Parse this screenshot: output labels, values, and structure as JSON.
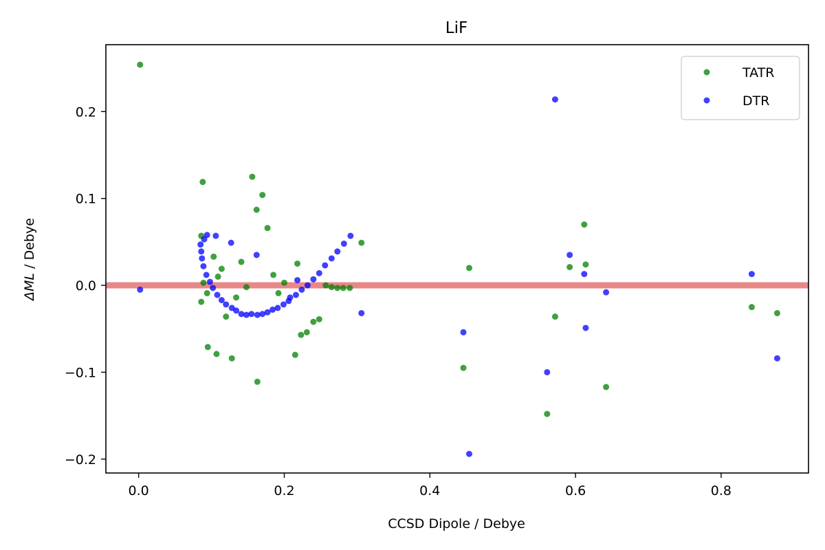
{
  "chart_data": {
    "type": "scatter",
    "title": "LiF",
    "xlabel": "CCSD Dipole / Debye",
    "ylabel_symbol": "ΔML",
    "ylabel_unit": " / Debye",
    "xlim": [
      -0.045,
      0.92
    ],
    "ylim": [
      -0.216,
      0.277
    ],
    "x_ticks": [
      0.0,
      0.2,
      0.4,
      0.6,
      0.8
    ],
    "x_tick_labels": [
      "0.0",
      "0.2",
      "0.4",
      "0.6",
      "0.8"
    ],
    "y_ticks": [
      -0.2,
      -0.1,
      0.0,
      0.1,
      0.2
    ],
    "y_tick_labels": [
      "−0.2",
      "−0.1",
      "0.0",
      "0.1",
      "0.2"
    ],
    "grid": false,
    "legend_position": "top-right",
    "reference_line": {
      "y": 0.0,
      "color": "#d62728"
    },
    "series": [
      {
        "name": "TATR",
        "color": "#008000",
        "points": [
          [
            0.002,
            0.254
          ],
          [
            0.086,
            0.057
          ],
          [
            0.086,
            -0.019
          ],
          [
            0.088,
            0.119
          ],
          [
            0.089,
            0.003
          ],
          [
            0.094,
            -0.009
          ],
          [
            0.095,
            -0.071
          ],
          [
            0.103,
            0.033
          ],
          [
            0.107,
            -0.079
          ],
          [
            0.109,
            0.01
          ],
          [
            0.114,
            0.019
          ],
          [
            0.12,
            -0.036
          ],
          [
            0.128,
            -0.084
          ],
          [
            0.134,
            -0.014
          ],
          [
            0.141,
            0.027
          ],
          [
            0.148,
            -0.002
          ],
          [
            0.156,
            0.125
          ],
          [
            0.162,
            0.087
          ],
          [
            0.163,
            -0.111
          ],
          [
            0.17,
            0.104
          ],
          [
            0.177,
            0.066
          ],
          [
            0.185,
            0.012
          ],
          [
            0.192,
            -0.009
          ],
          [
            0.2,
            0.003
          ],
          [
            0.215,
            -0.08
          ],
          [
            0.218,
            0.025
          ],
          [
            0.223,
            -0.057
          ],
          [
            0.231,
            -0.054
          ],
          [
            0.24,
            -0.042
          ],
          [
            0.248,
            -0.039
          ],
          [
            0.257,
            0.0
          ],
          [
            0.265,
            -0.002
          ],
          [
            0.273,
            -0.003
          ],
          [
            0.281,
            -0.003
          ],
          [
            0.29,
            -0.003
          ],
          [
            0.306,
            0.049
          ],
          [
            0.446,
            -0.095
          ],
          [
            0.454,
            0.02
          ],
          [
            0.561,
            -0.148
          ],
          [
            0.572,
            -0.036
          ],
          [
            0.592,
            0.021
          ],
          [
            0.612,
            0.07
          ],
          [
            0.614,
            0.024
          ],
          [
            0.642,
            -0.117
          ],
          [
            0.842,
            -0.025
          ],
          [
            0.877,
            -0.032
          ]
        ]
      },
      {
        "name": "DTR",
        "color": "#0000ff",
        "points": [
          [
            0.002,
            -0.005
          ],
          [
            0.085,
            0.047
          ],
          [
            0.086,
            0.039
          ],
          [
            0.087,
            0.031
          ],
          [
            0.089,
            0.022
          ],
          [
            0.09,
            0.053
          ],
          [
            0.093,
            0.012
          ],
          [
            0.094,
            0.058
          ],
          [
            0.098,
            0.004
          ],
          [
            0.102,
            -0.003
          ],
          [
            0.106,
            0.057
          ],
          [
            0.108,
            -0.011
          ],
          [
            0.114,
            -0.017
          ],
          [
            0.12,
            -0.022
          ],
          [
            0.127,
            0.049
          ],
          [
            0.128,
            -0.026
          ],
          [
            0.134,
            -0.029
          ],
          [
            0.141,
            -0.033
          ],
          [
            0.148,
            -0.034
          ],
          [
            0.155,
            -0.033
          ],
          [
            0.162,
            0.035
          ],
          [
            0.163,
            -0.034
          ],
          [
            0.17,
            -0.033
          ],
          [
            0.177,
            -0.031
          ],
          [
            0.184,
            -0.028
          ],
          [
            0.191,
            -0.026
          ],
          [
            0.199,
            -0.022
          ],
          [
            0.206,
            -0.018
          ],
          [
            0.208,
            -0.014
          ],
          [
            0.216,
            -0.011
          ],
          [
            0.218,
            0.006
          ],
          [
            0.224,
            -0.005
          ],
          [
            0.232,
            0.0
          ],
          [
            0.24,
            0.007
          ],
          [
            0.248,
            0.014
          ],
          [
            0.256,
            0.023
          ],
          [
            0.265,
            0.031
          ],
          [
            0.273,
            0.039
          ],
          [
            0.282,
            0.048
          ],
          [
            0.291,
            0.057
          ],
          [
            0.306,
            -0.032
          ],
          [
            0.446,
            -0.054
          ],
          [
            0.454,
            -0.194
          ],
          [
            0.561,
            -0.1
          ],
          [
            0.572,
            0.214
          ],
          [
            0.592,
            0.035
          ],
          [
            0.612,
            0.013
          ],
          [
            0.614,
            -0.049
          ],
          [
            0.642,
            -0.008
          ],
          [
            0.842,
            0.013
          ],
          [
            0.877,
            -0.084
          ]
        ]
      }
    ]
  }
}
